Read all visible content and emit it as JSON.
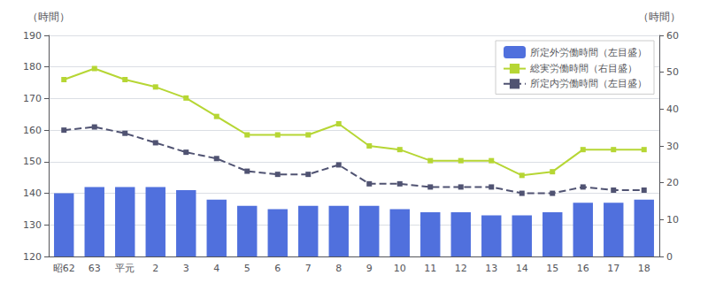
{
  "chart_data": {
    "type": "bar",
    "categories": [
      "昭62",
      "63",
      "平元",
      "2",
      "3",
      "4",
      "5",
      "6",
      "7",
      "8",
      "9",
      "10",
      "11",
      "12",
      "13",
      "14",
      "15",
      "16",
      "17",
      "18"
    ],
    "series": [
      {
        "name": "所定外労働時間（左目盛）",
        "type": "bar",
        "values": [
          140,
          142,
          142,
          142,
          141,
          138,
          136,
          135,
          136,
          136,
          136,
          135,
          134,
          134,
          133,
          133,
          134,
          137,
          137,
          138
        ]
      },
      {
        "name": "総実労働時間（右目盛）",
        "type": "line",
        "axis": "y2",
        "marker": "square",
        "line_style": "solid",
        "values": [
          48,
          51,
          48,
          46,
          43,
          38,
          33,
          33,
          33,
          36,
          30,
          29,
          26,
          26,
          26,
          22,
          23,
          29,
          29,
          29
        ]
      },
      {
        "name": "所定内労働時間（左目盛）",
        "type": "line",
        "marker": "square",
        "line_style": "dashed",
        "values": [
          160,
          161,
          159,
          156,
          153,
          151,
          147,
          146,
          146,
          149,
          143,
          143,
          142,
          142,
          142,
          140,
          140,
          142,
          141,
          141
        ]
      }
    ],
    "ylabel": "（時間）",
    "y2label": "（時間）",
    "ylim": [
      120,
      190
    ],
    "yticks": [
      120,
      130,
      140,
      150,
      160,
      170,
      180,
      190
    ],
    "y2lim": [
      0,
      60
    ],
    "y2ticks": [
      0,
      10,
      20,
      30,
      40,
      50,
      60
    ],
    "grid": true,
    "legend": "upper right"
  }
}
